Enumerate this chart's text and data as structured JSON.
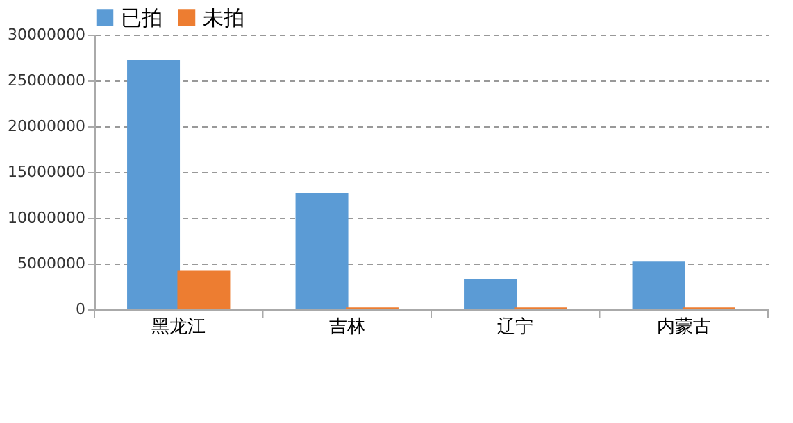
{
  "chart_data": {
    "type": "bar",
    "categories": [
      "黑龙江",
      "吉林",
      "辽宁",
      "内蒙古"
    ],
    "series": [
      {
        "name": "已拍",
        "color": "#5b9bd5",
        "values": [
          27200000,
          12700000,
          3300000,
          5200000
        ]
      },
      {
        "name": "未拍",
        "color": "#ed7d31",
        "values": [
          4200000,
          200000,
          200000,
          200000
        ]
      }
    ],
    "ylim": [
      0,
      30000000
    ],
    "yticks": [
      0,
      5000000,
      10000000,
      15000000,
      20000000,
      25000000,
      30000000
    ],
    "grid": "y",
    "legend": "top"
  }
}
